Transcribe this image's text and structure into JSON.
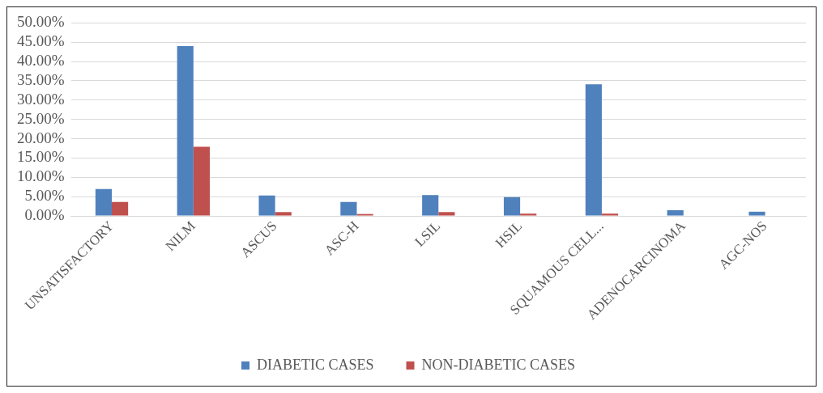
{
  "chart_data": {
    "type": "bar",
    "categories": [
      "UNSATISFACTORY",
      "NILM",
      "ASCUS",
      "ASC-H",
      "LSIL",
      "HSIL",
      "SQUAMOUS CELL...",
      "ADENOCARCINOMA",
      "AGC-NOS"
    ],
    "series": [
      {
        "name": "DIABETIC CASES",
        "color": "#4f81bd",
        "values": [
          7.0,
          44.0,
          5.3,
          3.6,
          5.4,
          4.9,
          34.1,
          1.5,
          1.1
        ]
      },
      {
        "name": "NON-DIABETIC CASES",
        "color": "#c0504d",
        "values": [
          3.6,
          17.9,
          1.0,
          0.5,
          1.0,
          0.6,
          0.6,
          0,
          0
        ]
      }
    ],
    "ylim": [
      0,
      50
    ],
    "yticks": [
      {
        "value": 0,
        "label": "0.00%"
      },
      {
        "value": 5,
        "label": "5.00%"
      },
      {
        "value": 10,
        "label": "10.00%"
      },
      {
        "value": 15,
        "label": "15.00%"
      },
      {
        "value": 20,
        "label": "20.00%"
      },
      {
        "value": 25,
        "label": "25.00%"
      },
      {
        "value": 30,
        "label": "30.00%"
      },
      {
        "value": 35,
        "label": "35.00%"
      },
      {
        "value": 40,
        "label": "40.00%"
      },
      {
        "value": 45,
        "label": "45.00%"
      },
      {
        "value": 50,
        "label": "50.00%"
      }
    ],
    "grid": "y",
    "legend": "bottom"
  }
}
